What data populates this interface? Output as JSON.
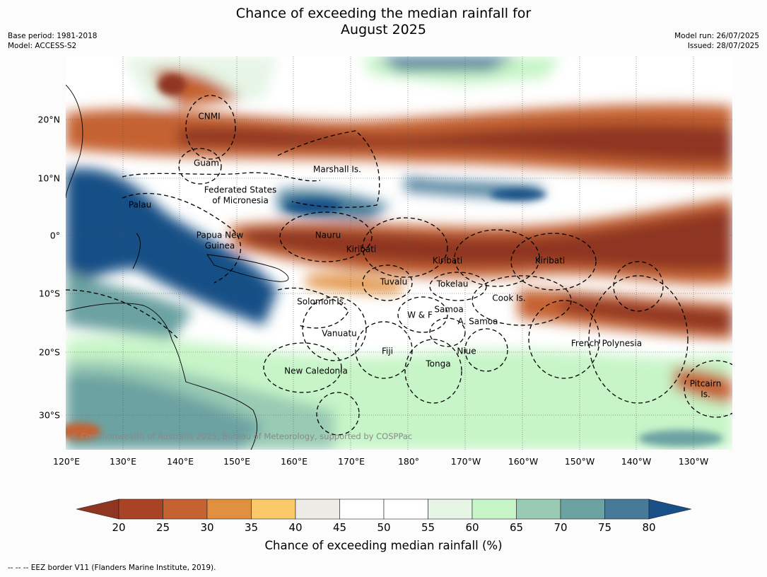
{
  "title_line1": "Chance of exceeding the median rainfall for",
  "title_line2": "August 2025",
  "meta_left": {
    "base_period": "Base period: 1981-2018",
    "model": "Model: ACCESS-S2"
  },
  "meta_right": {
    "model_run": "Model run: 26/07/2025",
    "issued": "Issued: 28/07/2025"
  },
  "lon_labels": [
    "120°E",
    "130°E",
    "140°E",
    "150°E",
    "160°E",
    "170°E",
    "180°",
    "170°W",
    "160°W",
    "150°W",
    "140°W",
    "130°W"
  ],
  "lat_labels": [
    "20°N",
    "10°N",
    "0°",
    "10°S",
    "20°S",
    "30°S"
  ],
  "regions": [
    "CNMI",
    "Guam",
    "Marshall Is.",
    "Federated States",
    "of Micronesia",
    "Palau",
    "Papua New",
    "Guinea",
    "Nauru",
    "Kiribati",
    "Kiribati",
    "Kiribati",
    "Tuvalu",
    "Tokelau",
    "Solomon Is.",
    "Cook Is.",
    "Samoa",
    "W & F",
    "A. Samoa",
    "Vanuatu",
    "Fiji",
    "Niue",
    "Tonga",
    "French Polynesia",
    "New Caledonia",
    "Pitcairn",
    "Is."
  ],
  "copyright": "© Commonwealth of Australia 2025, Bureau of Meteorology, supported by COSPPac",
  "colorbar": {
    "ticks": [
      "20",
      "25",
      "30",
      "35",
      "40",
      "45",
      "50",
      "55",
      "60",
      "65",
      "70",
      "75",
      "80"
    ],
    "colors": [
      "#8f3522",
      "#a84326",
      "#c56232",
      "#e09040",
      "#fbc96a",
      "#ecebe6",
      "#ffffff",
      "#ffffff",
      "#e6f5e6",
      "#c7f5c8",
      "#99cbb4",
      "#6ca2a2",
      "#477a98",
      "#174f86"
    ],
    "title": "Chance of exceeding median rainfall (%)"
  },
  "footnote": "--  --  -- EEZ border V11 (Flanders Marine Institute, 2019).",
  "map_colors": {
    "dry_deep": "#8f3522",
    "dry": "#c56232",
    "dry_light": "#fbc96a",
    "neutral": "#ffffff",
    "wet_light": "#c7f5c8",
    "wet": "#6ca2a2",
    "wet_deep": "#174f86"
  }
}
